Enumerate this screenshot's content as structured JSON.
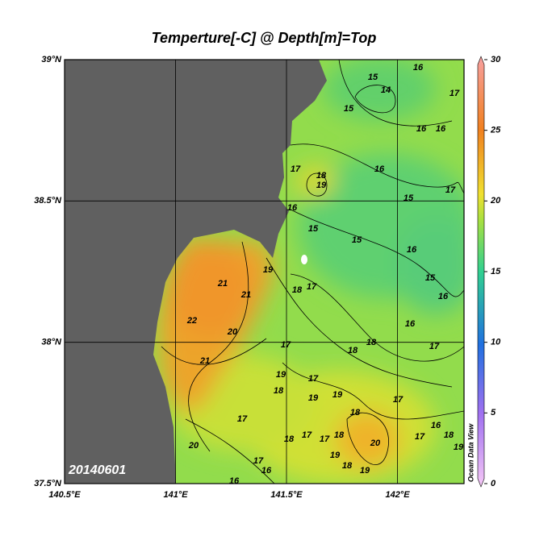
{
  "title": "Temperture[-C] @ Depth[m]=Top",
  "date_label": "20140601",
  "watermark": "Ocean Data View",
  "map": {
    "xlim": [
      140.5,
      142.3
    ],
    "ylim": [
      37.5,
      39
    ],
    "xticks": [
      {
        "value": 140.5,
        "label": "140.5°E"
      },
      {
        "value": 141,
        "label": "141°E"
      },
      {
        "value": 141.5,
        "label": "141.5°E"
      },
      {
        "value": 142,
        "label": "142°E"
      }
    ],
    "yticks": [
      {
        "value": 37.5,
        "label": "37.5°N"
      },
      {
        "value": 38,
        "label": "38°N"
      },
      {
        "value": 38.5,
        "label": "38.5°N"
      },
      {
        "value": 39,
        "label": "39°N"
      }
    ],
    "grid": true
  },
  "colorbar": {
    "lim": [
      0,
      30
    ],
    "ticks": [
      0,
      5,
      10,
      15,
      20,
      25,
      30
    ]
  },
  "contour_labels": [
    "15",
    "16",
    "14",
    "17",
    "15",
    "16",
    "16",
    "17",
    "18",
    "19",
    "16",
    "15",
    "17",
    "16",
    "15",
    "15",
    "16",
    "19",
    "18",
    "17",
    "15",
    "16",
    "21",
    "21",
    "22",
    "20",
    "16",
    "17",
    "18",
    "17",
    "18",
    "21",
    "19",
    "17",
    "19",
    "19",
    "18",
    "17",
    "17",
    "18",
    "17",
    "16",
    "18",
    "20",
    "18",
    "17",
    "17",
    "18",
    "20",
    "19",
    "19",
    "19",
    "18",
    "17",
    "16",
    "16"
  ]
}
